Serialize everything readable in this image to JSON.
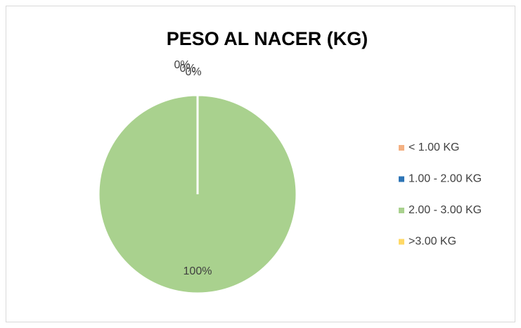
{
  "chart_data": {
    "type": "pie",
    "title": "PESO AL NACER (KG)",
    "categories": [
      "< 1.00 KG",
      "1.00 - 2.00 KG",
      "2.00 - 3.00 KG",
      ">3.00 KG"
    ],
    "values": [
      0,
      0,
      100,
      0
    ],
    "value_labels": [
      "0%",
      "0%",
      "100%",
      "0%"
    ],
    "colors": [
      "#F4B183",
      "#2E75B6",
      "#A9D18E",
      "#FFD966"
    ],
    "legend": "right"
  }
}
